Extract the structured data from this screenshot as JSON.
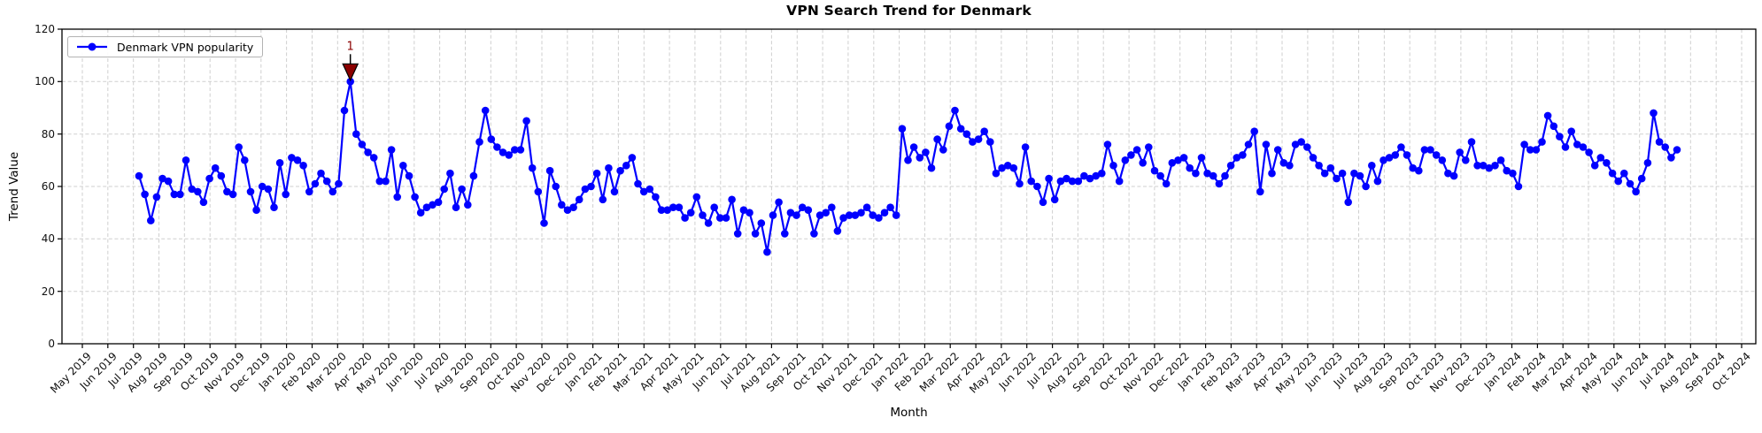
{
  "chart_data": {
    "type": "line",
    "title": "VPN Search Trend for Denmark",
    "xlabel": "Month",
    "ylabel": "Trend Value",
    "ylim": [
      0,
      120
    ],
    "yticks": [
      0,
      20,
      40,
      60,
      80,
      100,
      120
    ],
    "grid": true,
    "legend_position": "upper left",
    "x_tick_labels": [
      "May 2019",
      "Jun 2019",
      "Jul 2019",
      "Aug 2019",
      "Sep 2019",
      "Oct 2019",
      "Nov 2019",
      "Dec 2019",
      "Jan 2020",
      "Feb 2020",
      "Mar 2020",
      "Apr 2020",
      "May 2020",
      "Jun 2020",
      "Jul 2020",
      "Aug 2020",
      "Sep 2020",
      "Oct 2020",
      "Nov 2020",
      "Dec 2020",
      "Jan 2021",
      "Feb 2021",
      "Mar 2021",
      "Apr 2021",
      "May 2021",
      "Jun 2021",
      "Jul 2021",
      "Aug 2021",
      "Sep 2021",
      "Oct 2021",
      "Nov 2021",
      "Dec 2021",
      "Jan 2022",
      "Feb 2022",
      "Mar 2022",
      "Apr 2022",
      "May 2022",
      "Jun 2022",
      "Jul 2022",
      "Aug 2022",
      "Sep 2022",
      "Oct 2022",
      "Nov 2022",
      "Dec 2022",
      "Jan 2023",
      "Feb 2023",
      "Mar 2023",
      "Apr 2023",
      "May 2023",
      "Jun 2023",
      "Jul 2023",
      "Aug 2023",
      "Sep 2023",
      "Oct 2023",
      "Nov 2023",
      "Dec 2023",
      "Jan 2024",
      "Feb 2024",
      "Mar 2024",
      "Apr 2024",
      "May 2024",
      "Jun 2024",
      "Jul 2024",
      "Aug 2024",
      "Sep 2024",
      "Oct 2024"
    ],
    "series": [
      {
        "name": "Denmark VPN popularity",
        "color": "#0000ff",
        "marker": "circle",
        "cadence": "weekly",
        "first_point_position_months_after_first_tick": 2.2,
        "values": [
          64,
          57,
          47,
          56,
          63,
          62,
          57,
          57,
          70,
          59,
          58,
          54,
          63,
          67,
          64,
          58,
          57,
          75,
          70,
          58,
          51,
          60,
          59,
          52,
          69,
          57,
          71,
          70,
          68,
          58,
          61,
          65,
          62,
          58,
          61,
          89,
          100,
          80,
          76,
          73,
          71,
          62,
          62,
          74,
          56,
          68,
          64,
          56,
          50,
          52,
          53,
          54,
          59,
          65,
          52,
          59,
          53,
          64,
          77,
          89,
          78,
          75,
          73,
          72,
          74,
          74,
          85,
          67,
          58,
          46,
          66,
          60,
          53,
          51,
          52,
          55,
          59,
          60,
          65,
          55,
          67,
          58,
          66,
          68,
          71,
          61,
          58,
          59,
          56,
          51,
          51,
          52,
          52,
          48,
          50,
          56,
          49,
          46,
          52,
          48,
          48,
          55,
          42,
          51,
          50,
          42,
          46,
          35,
          49,
          54,
          42,
          50,
          49,
          52,
          51,
          42,
          49,
          50,
          52,
          43,
          48,
          49,
          49,
          50,
          52,
          49,
          48,
          50,
          52,
          49,
          82,
          70,
          75,
          71,
          73,
          67,
          78,
          74,
          83,
          89,
          82,
          80,
          77,
          78,
          81,
          77,
          65,
          67,
          68,
          67,
          61,
          75,
          62,
          60,
          54,
          63,
          55,
          62,
          63,
          62,
          62,
          64,
          63,
          64,
          65,
          76,
          68,
          62,
          70,
          72,
          74,
          69,
          75,
          66,
          64,
          61,
          69,
          70,
          71,
          67,
          65,
          71,
          65,
          64,
          61,
          64,
          68,
          71,
          72,
          76,
          81,
          58,
          76,
          65,
          74,
          69,
          68,
          76,
          77,
          75,
          71,
          68,
          65,
          67,
          63,
          65,
          54,
          65,
          64,
          60,
          68,
          62,
          70,
          71,
          72,
          75,
          72,
          67,
          66,
          74,
          74,
          72,
          70,
          65,
          64,
          73,
          70,
          77,
          68,
          68,
          67,
          68,
          70,
          66,
          65,
          60,
          76,
          74,
          74,
          77,
          87,
          83,
          79,
          75,
          81,
          76,
          75,
          73,
          68,
          71,
          69,
          65,
          62,
          65,
          61,
          58,
          63,
          69,
          88,
          77,
          75,
          71,
          74
        ]
      }
    ],
    "annotations": [
      {
        "label": "1",
        "series_index": 36,
        "value": 100,
        "color": "#8b0000",
        "marker": "triangle-down"
      }
    ]
  }
}
